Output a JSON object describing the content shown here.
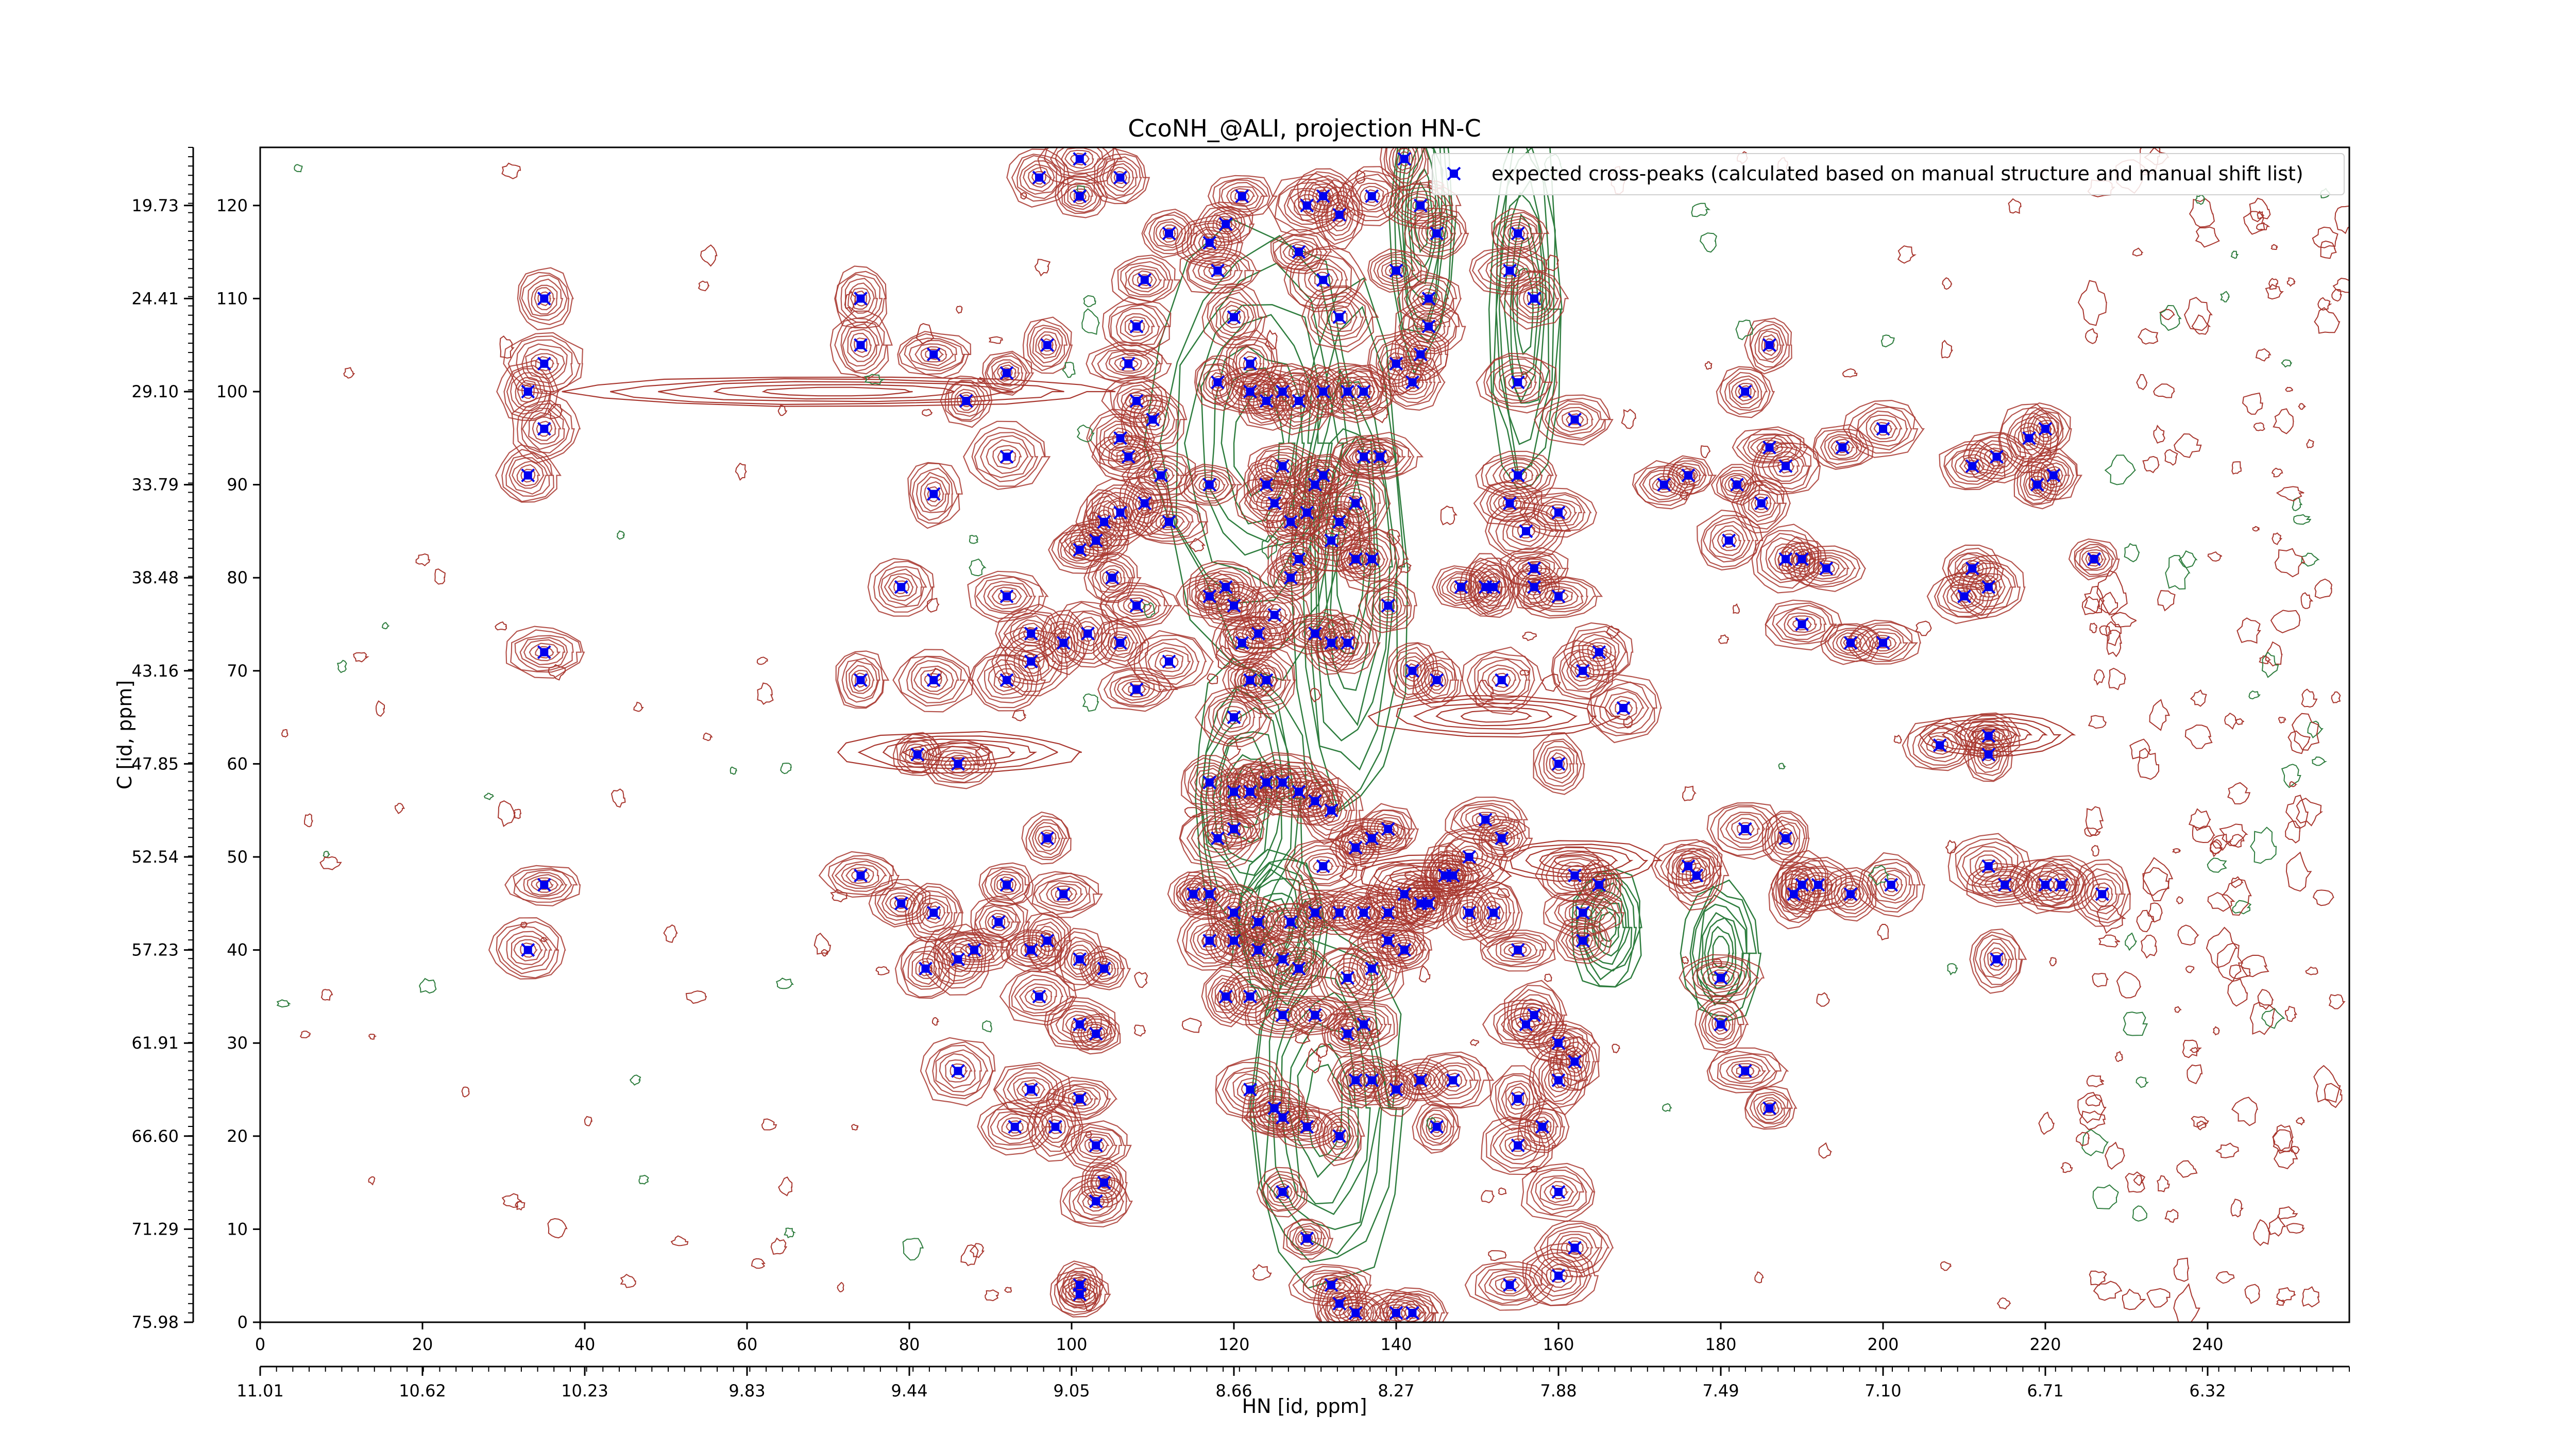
{
  "chart_data": {
    "type": "scatter",
    "title": "CcoNH_@ALI, projection HN-C",
    "xlabel": "HN [id, ppm]",
    "ylabel": "C [id, ppm]",
    "xlim": [
      0,
      257
    ],
    "ylim": [
      0,
      126
    ],
    "x_ticks": [
      0,
      20,
      40,
      60,
      80,
      100,
      120,
      140,
      160,
      180,
      200,
      220,
      240
    ],
    "y_ticks": [
      0,
      10,
      20,
      30,
      40,
      50,
      60,
      70,
      80,
      90,
      100,
      110,
      120
    ],
    "hn_ppm_tick_labels": [
      "11.01",
      "10.62",
      "10.23",
      "9.83",
      "9.44",
      "9.05",
      "8.66",
      "8.27",
      "7.88",
      "7.49",
      "7.10",
      "6.71",
      "6.32"
    ],
    "c_ppm_tick_labels": [
      "75.98",
      "71.29",
      "66.60",
      "61.91",
      "57.23",
      "52.54",
      "47.85",
      "43.16",
      "38.48",
      "33.79",
      "29.10",
      "24.41",
      "19.73"
    ],
    "legend": {
      "label": "expected cross-peaks (calculated based on manual structure and manual shift list)",
      "position": "top-right"
    },
    "series": [
      {
        "name": "expected cross-peaks (calculated based on manual structure and manual shift list)",
        "color": "#0000ee",
        "marker": "x-square",
        "points": [
          [
            35,
            110
          ],
          [
            35,
            103
          ],
          [
            35,
            96
          ],
          [
            33,
            100
          ],
          [
            33,
            91
          ],
          [
            35,
            72
          ],
          [
            35,
            47
          ],
          [
            33,
            40
          ],
          [
            74,
            110
          ],
          [
            74,
            105
          ],
          [
            83,
            104
          ],
          [
            92,
            102
          ],
          [
            97,
            105
          ],
          [
            87,
            99
          ],
          [
            92,
            93
          ],
          [
            83,
            89
          ],
          [
            79,
            79
          ],
          [
            92,
            78
          ],
          [
            95,
            74
          ],
          [
            95,
            71
          ],
          [
            92,
            69
          ],
          [
            83,
            69
          ],
          [
            74,
            69
          ],
          [
            99,
            73
          ],
          [
            102,
            74
          ],
          [
            106,
            73
          ],
          [
            81,
            61
          ],
          [
            86,
            60
          ],
          [
            74,
            48
          ],
          [
            79,
            45
          ],
          [
            83,
            44
          ],
          [
            92,
            47
          ],
          [
            97,
            52
          ],
          [
            99,
            46
          ],
          [
            91,
            43
          ],
          [
            97,
            41
          ],
          [
            95,
            40
          ],
          [
            88,
            40
          ],
          [
            86,
            39
          ],
          [
            82,
            38
          ],
          [
            101,
            39
          ],
          [
            104,
            38
          ],
          [
            96,
            35
          ],
          [
            101,
            32
          ],
          [
            103,
            31
          ],
          [
            86,
            27
          ],
          [
            95,
            25
          ],
          [
            101,
            24
          ],
          [
            93,
            21
          ],
          [
            98,
            21
          ],
          [
            103,
            19
          ],
          [
            104,
            15
          ],
          [
            103,
            13
          ],
          [
            101,
            4
          ],
          [
            101,
            3
          ],
          [
            96,
            123
          ],
          [
            101,
            125
          ],
          [
            101,
            121
          ],
          [
            106,
            123
          ],
          [
            112,
            117
          ],
          [
            109,
            112
          ],
          [
            108,
            107
          ],
          [
            107,
            103
          ],
          [
            108,
            99
          ],
          [
            110,
            97
          ],
          [
            106,
            95
          ],
          [
            107,
            93
          ],
          [
            111,
            91
          ],
          [
            109,
            88
          ],
          [
            112,
            86
          ],
          [
            117,
            90
          ],
          [
            106,
            87
          ],
          [
            104,
            86
          ],
          [
            103,
            84
          ],
          [
            101,
            83
          ],
          [
            105,
            80
          ],
          [
            108,
            77
          ],
          [
            112,
            71
          ],
          [
            108,
            68
          ],
          [
            117,
            78
          ],
          [
            119,
            79
          ],
          [
            120,
            77
          ],
          [
            117,
            116
          ],
          [
            119,
            118
          ],
          [
            121,
            121
          ],
          [
            118,
            113
          ],
          [
            120,
            108
          ],
          [
            122,
            103
          ],
          [
            118,
            101
          ],
          [
            122,
            100
          ],
          [
            124,
            99
          ],
          [
            126,
            100
          ],
          [
            128,
            99
          ],
          [
            126,
            92
          ],
          [
            124,
            90
          ],
          [
            125,
            88
          ],
          [
            127,
            86
          ],
          [
            130,
            90
          ],
          [
            131,
            91
          ],
          [
            129,
            87
          ],
          [
            128,
            82
          ],
          [
            127,
            80
          ],
          [
            125,
            76
          ],
          [
            123,
            74
          ],
          [
            121,
            73
          ],
          [
            122,
            69
          ],
          [
            120,
            65
          ],
          [
            124,
            69
          ],
          [
            130,
            74
          ],
          [
            132,
            73
          ],
          [
            134,
            73
          ],
          [
            128,
            115
          ],
          [
            129,
            120
          ],
          [
            131,
            121
          ],
          [
            133,
            119
          ],
          [
            131,
            112
          ],
          [
            133,
            108
          ],
          [
            131,
            100
          ],
          [
            134,
            100
          ],
          [
            136,
            100
          ],
          [
            140,
            103
          ],
          [
            142,
            101
          ],
          [
            143,
            104
          ],
          [
            144,
            107
          ],
          [
            144,
            110
          ],
          [
            145,
            117
          ],
          [
            143,
            120
          ],
          [
            141,
            125
          ],
          [
            137,
            121
          ],
          [
            140,
            113
          ],
          [
            138,
            93
          ],
          [
            136,
            93
          ],
          [
            135,
            88
          ],
          [
            133,
            86
          ],
          [
            132,
            84
          ],
          [
            135,
            82
          ],
          [
            137,
            82
          ],
          [
            139,
            77
          ],
          [
            142,
            70
          ],
          [
            145,
            69
          ],
          [
            117,
            58
          ],
          [
            120,
            57
          ],
          [
            122,
            57
          ],
          [
            124,
            58
          ],
          [
            126,
            58
          ],
          [
            128,
            57
          ],
          [
            130,
            56
          ],
          [
            132,
            55
          ],
          [
            118,
            52
          ],
          [
            120,
            53
          ],
          [
            115,
            46
          ],
          [
            117,
            46
          ],
          [
            120,
            44
          ],
          [
            123,
            43
          ],
          [
            127,
            43
          ],
          [
            130,
            44
          ],
          [
            133,
            44
          ],
          [
            136,
            44
          ],
          [
            139,
            44
          ],
          [
            141,
            46
          ],
          [
            143,
            45
          ],
          [
            144,
            45
          ],
          [
            146,
            48
          ],
          [
            147,
            48
          ],
          [
            131,
            49
          ],
          [
            135,
            51
          ],
          [
            137,
            52
          ],
          [
            139,
            53
          ],
          [
            117,
            41
          ],
          [
            120,
            41
          ],
          [
            123,
            40
          ],
          [
            126,
            39
          ],
          [
            128,
            38
          ],
          [
            134,
            37
          ],
          [
            137,
            38
          ],
          [
            139,
            41
          ],
          [
            141,
            40
          ],
          [
            119,
            35
          ],
          [
            122,
            35
          ],
          [
            126,
            33
          ],
          [
            130,
            33
          ],
          [
            134,
            31
          ],
          [
            136,
            32
          ],
          [
            122,
            25
          ],
          [
            125,
            23
          ],
          [
            126,
            22
          ],
          [
            129,
            21
          ],
          [
            133,
            20
          ],
          [
            135,
            26
          ],
          [
            137,
            26
          ],
          [
            140,
            25
          ],
          [
            143,
            26
          ],
          [
            145,
            21
          ],
          [
            147,
            26
          ],
          [
            126,
            14
          ],
          [
            129,
            9
          ],
          [
            132,
            4
          ],
          [
            133,
            2
          ],
          [
            135,
            1
          ],
          [
            140,
            1
          ],
          [
            142,
            1
          ],
          [
            149,
            50
          ],
          [
            151,
            54
          ],
          [
            153,
            52
          ],
          [
            149,
            44
          ],
          [
            152,
            44
          ],
          [
            155,
            40
          ],
          [
            156,
            32
          ],
          [
            157,
            33
          ],
          [
            160,
            30
          ],
          [
            162,
            28
          ],
          [
            160,
            26
          ],
          [
            155,
            24
          ],
          [
            158,
            21
          ],
          [
            155,
            19
          ],
          [
            160,
            14
          ],
          [
            162,
            8
          ],
          [
            160,
            5
          ],
          [
            154,
            4
          ],
          [
            152,
            79
          ],
          [
            153,
            69
          ],
          [
            157,
            81
          ],
          [
            160,
            87
          ],
          [
            156,
            85
          ],
          [
            160,
            78
          ],
          [
            163,
            70
          ],
          [
            165,
            72
          ],
          [
            160,
            60
          ],
          [
            168,
            66
          ],
          [
            155,
            117
          ],
          [
            154,
            113
          ],
          [
            157,
            110
          ],
          [
            155,
            101
          ],
          [
            162,
            97
          ],
          [
            155,
            91
          ],
          [
            154,
            88
          ],
          [
            151,
            79
          ],
          [
            157,
            79
          ],
          [
            148,
            79
          ],
          [
            162,
            48
          ],
          [
            165,
            47
          ],
          [
            163,
            44
          ],
          [
            163,
            41
          ],
          [
            176,
            49
          ],
          [
            177,
            48
          ],
          [
            183,
            53
          ],
          [
            180,
            37
          ],
          [
            180,
            32
          ],
          [
            183,
            27
          ],
          [
            186,
            23
          ],
          [
            188,
            52
          ],
          [
            190,
            47
          ],
          [
            189,
            46
          ],
          [
            192,
            47
          ],
          [
            196,
            46
          ],
          [
            201,
            47
          ],
          [
            213,
            49
          ],
          [
            215,
            47
          ],
          [
            214,
            39
          ],
          [
            186,
            105
          ],
          [
            183,
            100
          ],
          [
            186,
            94
          ],
          [
            188,
            92
          ],
          [
            182,
            90
          ],
          [
            176,
            91
          ],
          [
            173,
            90
          ],
          [
            181,
            84
          ],
          [
            185,
            88
          ],
          [
            195,
            94
          ],
          [
            200,
            96
          ],
          [
            188,
            82
          ],
          [
            190,
            82
          ],
          [
            193,
            81
          ],
          [
            200,
            73
          ],
          [
            196,
            73
          ],
          [
            190,
            75
          ],
          [
            207,
            62
          ],
          [
            213,
            63
          ],
          [
            213,
            61
          ],
          [
            211,
            81
          ],
          [
            213,
            79
          ],
          [
            210,
            78
          ],
          [
            211,
            92
          ],
          [
            214,
            93
          ],
          [
            218,
            95
          ],
          [
            220,
            96
          ],
          [
            219,
            90
          ],
          [
            221,
            91
          ],
          [
            226,
            82
          ],
          [
            227,
            46
          ],
          [
            222,
            47
          ],
          [
            220,
            47
          ]
        ]
      }
    ]
  }
}
